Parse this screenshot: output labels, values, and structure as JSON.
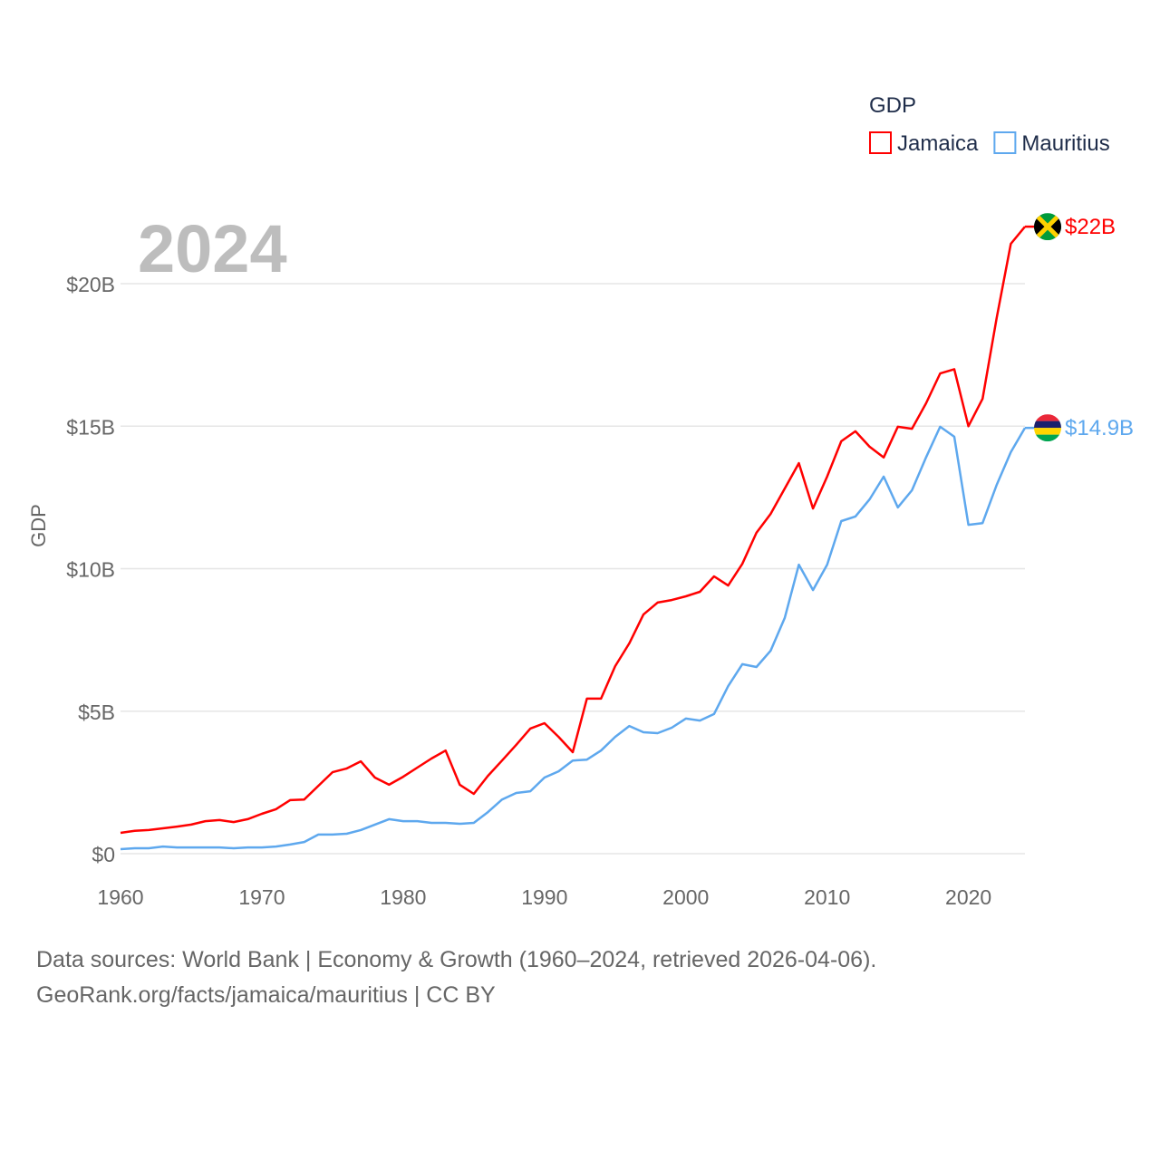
{
  "chart_data": {
    "type": "line",
    "title": "GDP",
    "year_label": "2024",
    "ylabel": "GDP",
    "xlabel": "",
    "xlim": [
      1960,
      2024
    ],
    "ylim": [
      0,
      22
    ],
    "x_ticks": [
      1960,
      1970,
      1980,
      1990,
      2000,
      2010,
      2020
    ],
    "y_ticks": [
      {
        "v": 0,
        "label": "$0"
      },
      {
        "v": 5,
        "label": "$5B"
      },
      {
        "v": 10,
        "label": "$10B"
      },
      {
        "v": 15,
        "label": "$15B"
      },
      {
        "v": 20,
        "label": "$20B"
      }
    ],
    "grid": true,
    "legend_position": "top-right",
    "x_start": 1960,
    "series": [
      {
        "name": "Jamaica",
        "color": "#ff0000",
        "end_label": "$22B",
        "flag": "jamaica-flag",
        "values": [
          0.73,
          0.8,
          0.83,
          0.89,
          0.95,
          1.02,
          1.14,
          1.18,
          1.11,
          1.21,
          1.4,
          1.56,
          1.88,
          1.9,
          2.38,
          2.86,
          2.99,
          3.24,
          2.67,
          2.42,
          2.7,
          3.02,
          3.34,
          3.62,
          2.42,
          2.1,
          2.73,
          3.27,
          3.82,
          4.39,
          4.58,
          4.1,
          3.56,
          5.44,
          5.44,
          6.58,
          7.38,
          8.39,
          8.81,
          8.9,
          9.03,
          9.19,
          9.73,
          9.41,
          10.17,
          11.26,
          11.92,
          12.81,
          13.7,
          12.11,
          13.23,
          14.47,
          14.82,
          14.28,
          13.9,
          14.98,
          14.91,
          15.8,
          16.85,
          17.0,
          15.0,
          15.96,
          18.8,
          21.4,
          22.0
        ]
      },
      {
        "name": "Mauritius",
        "color": "#5ea8ee",
        "end_label": "$14.9B",
        "flag": "mauritius-flag",
        "values": [
          0.16,
          0.19,
          0.19,
          0.25,
          0.22,
          0.22,
          0.22,
          0.22,
          0.19,
          0.22,
          0.22,
          0.25,
          0.32,
          0.41,
          0.67,
          0.67,
          0.7,
          0.83,
          1.02,
          1.21,
          1.14,
          1.14,
          1.08,
          1.08,
          1.05,
          1.08,
          1.46,
          1.9,
          2.13,
          2.19,
          2.67,
          2.89,
          3.27,
          3.3,
          3.62,
          4.1,
          4.48,
          4.26,
          4.23,
          4.42,
          4.74,
          4.67,
          4.9,
          5.88,
          6.65,
          6.55,
          7.12,
          8.27,
          10.14,
          9.25,
          10.14,
          11.67,
          11.83,
          12.43,
          13.23,
          12.15,
          12.75,
          13.9,
          14.98,
          14.63,
          11.54,
          11.6,
          12.94,
          14.09,
          14.94
        ]
      }
    ]
  },
  "footer": {
    "line1": "Data sources: World Bank | Economy & Growth (1960–2024, retrieved 2026-04-06).",
    "line2": "GeoRank.org/facts/jamaica/mauritius | CC BY"
  }
}
